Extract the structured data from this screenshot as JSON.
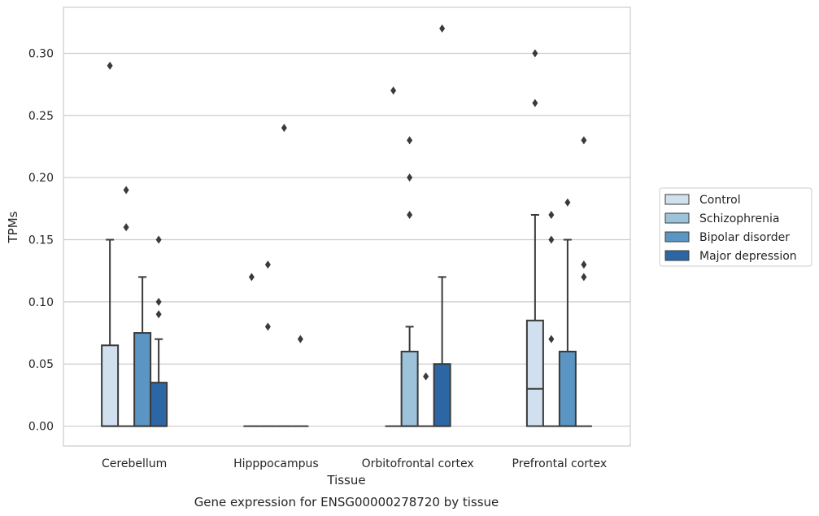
{
  "chart_data": {
    "type": "boxplot",
    "xlabel": "Tissue",
    "ylabel": "TPMs",
    "caption": "Gene expression for ENSG00000278720 by tissue",
    "ylim": [
      -0.016,
      0.337
    ],
    "yticks": [
      0.0,
      0.05,
      0.1,
      0.15,
      0.2,
      0.25,
      0.3
    ],
    "ytick_labels": [
      "0.00",
      "0.05",
      "0.10",
      "0.15",
      "0.20",
      "0.25",
      "0.30"
    ],
    "grid": "horizontal",
    "legend_position": "right-outside",
    "categories": [
      "Cerebellum",
      "Hipppocampus",
      "Orbitofrontal cortex",
      "Prefrontal cortex"
    ],
    "series": [
      {
        "name": "Control",
        "color": "#d0e0ef",
        "boxes": [
          {
            "q1": 0.0,
            "median": 0.0,
            "q3": 0.065,
            "whisker_low": 0.0,
            "whisker_high": 0.15,
            "outliers": [
              0.29
            ]
          },
          {
            "q1": 0.0,
            "median": 0.0,
            "q3": 0.0,
            "whisker_low": 0.0,
            "whisker_high": 0.0,
            "outliers": [
              0.12
            ]
          },
          {
            "q1": 0.0,
            "median": 0.0,
            "q3": 0.0,
            "whisker_low": 0.0,
            "whisker_high": 0.0,
            "outliers": [
              0.27
            ]
          },
          {
            "q1": 0.0,
            "median": 0.03,
            "q3": 0.085,
            "whisker_low": 0.0,
            "whisker_high": 0.17,
            "outliers": [
              0.3,
              0.26
            ]
          }
        ]
      },
      {
        "name": "Schizophrenia",
        "color": "#9cc3da",
        "boxes": [
          {
            "q1": 0.0,
            "median": 0.0,
            "q3": 0.0,
            "whisker_low": 0.0,
            "whisker_high": 0.0,
            "outliers": [
              0.19,
              0.16
            ]
          },
          {
            "q1": 0.0,
            "median": 0.0,
            "q3": 0.0,
            "whisker_low": 0.0,
            "whisker_high": 0.0,
            "outliers": [
              0.13,
              0.08
            ]
          },
          {
            "q1": 0.0,
            "median": 0.0,
            "q3": 0.06,
            "whisker_low": 0.0,
            "whisker_high": 0.08,
            "outliers": [
              0.23,
              0.2,
              0.17
            ]
          },
          {
            "q1": 0.0,
            "median": 0.0,
            "q3": 0.0,
            "whisker_low": 0.0,
            "whisker_high": 0.0,
            "outliers": [
              0.17,
              0.15,
              0.07
            ]
          }
        ]
      },
      {
        "name": "Bipolar disorder",
        "color": "#5a95c4",
        "boxes": [
          {
            "q1": 0.0,
            "median": 0.0,
            "q3": 0.075,
            "whisker_low": 0.0,
            "whisker_high": 0.12,
            "outliers": []
          },
          {
            "q1": 0.0,
            "median": 0.0,
            "q3": 0.0,
            "whisker_low": 0.0,
            "whisker_high": 0.0,
            "outliers": [
              0.24
            ]
          },
          {
            "q1": 0.0,
            "median": 0.0,
            "q3": 0.0,
            "whisker_low": 0.0,
            "whisker_high": 0.0,
            "outliers": [
              0.04
            ]
          },
          {
            "q1": 0.0,
            "median": 0.0,
            "q3": 0.06,
            "whisker_low": 0.0,
            "whisker_high": 0.15,
            "outliers": [
              0.18
            ]
          }
        ]
      },
      {
        "name": "Major depression",
        "color": "#2d66a5",
        "boxes": [
          {
            "q1": 0.0,
            "median": 0.0,
            "q3": 0.035,
            "whisker_low": 0.0,
            "whisker_high": 0.07,
            "outliers": [
              0.15,
              0.1,
              0.09
            ]
          },
          {
            "q1": 0.0,
            "median": 0.0,
            "q3": 0.0,
            "whisker_low": 0.0,
            "whisker_high": 0.0,
            "outliers": [
              0.07
            ]
          },
          {
            "q1": 0.0,
            "median": 0.0,
            "q3": 0.05,
            "whisker_low": 0.0,
            "whisker_high": 0.12,
            "outliers": [
              0.32
            ]
          },
          {
            "q1": 0.0,
            "median": 0.0,
            "q3": 0.0,
            "whisker_low": 0.0,
            "whisker_high": 0.0,
            "outliers": [
              0.23,
              0.13,
              0.12
            ]
          }
        ]
      }
    ]
  }
}
